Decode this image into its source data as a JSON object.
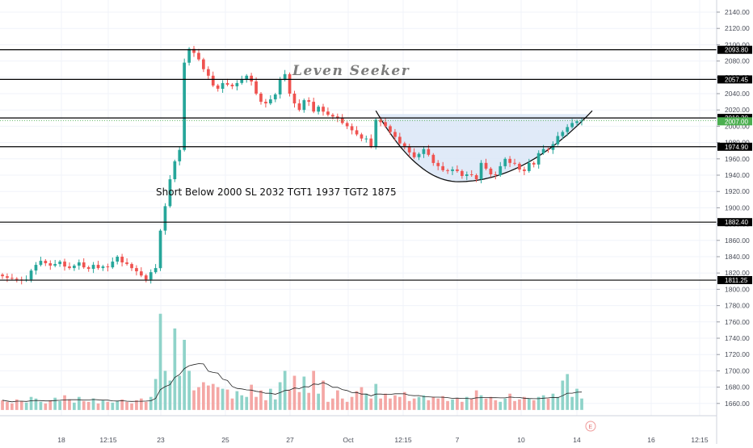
{
  "chart_data": {
    "type": "candlestick",
    "watermark": "Leven Seeker",
    "annotation": "Short Below 2000 SL 2032 TGT1 1937 TGT2 1875",
    "y_ticks": [
      "2140.00",
      "2120.00",
      "2100.00",
      "2080.00",
      "2060.00",
      "2040.00",
      "2020.00",
      "2000.00",
      "1980.00",
      "1960.00",
      "1940.00",
      "1920.00",
      "1900.00",
      "1880.00",
      "1860.00",
      "1840.00",
      "1820.00",
      "1800.00",
      "1780.00",
      "1760.00",
      "1740.00",
      "1720.00",
      "1700.00",
      "1680.00",
      "1660.00"
    ],
    "x_ticks": [
      "18",
      "12:15",
      "23",
      "25",
      "27",
      "Oct",
      "12:15",
      "7",
      "10",
      "14",
      "16",
      "12:15"
    ],
    "levels": [
      {
        "value": 2093.8,
        "label": "2093.80"
      },
      {
        "value": 2057.45,
        "label": "2057.45"
      },
      {
        "value": 2010.2,
        "label": "2010.20"
      },
      {
        "value": 1974.9,
        "label": "1974.90"
      },
      {
        "value": 1882.4,
        "label": "1882.40"
      },
      {
        "value": 1811.25,
        "label": "1811.25"
      }
    ],
    "current_price": {
      "value": 2007.0,
      "label": "2007.00"
    },
    "ylim": [
      1650,
      2150
    ],
    "colors": {
      "up": "#26a69a",
      "down": "#ef5350",
      "up_volume": "#8fd3c9",
      "down_volume": "#f4a7a5",
      "pattern_fill": "#dbe6f7",
      "level_line": "#000000",
      "price_tag": "#4caf50"
    },
    "candles": {
      "open": [
        1818,
        1816,
        1814,
        1813,
        1812,
        1811,
        1812,
        1823,
        1830,
        1835,
        1832,
        1829,
        1831,
        1834,
        1828,
        1826,
        1829,
        1833,
        1827,
        1825,
        1830,
        1826,
        1828,
        1827,
        1834,
        1840,
        1833,
        1831,
        1826,
        1822,
        1817,
        1812,
        1821,
        1826,
        1872,
        1902,
        1935,
        1957,
        1971,
        2078,
        2095,
        2090,
        2082,
        2070,
        2062,
        2050,
        2046,
        2053,
        2051,
        2049,
        2053,
        2057,
        2062,
        2055,
        2040,
        2030,
        2028,
        2033,
        2039,
        2057,
        2064,
        2040,
        2028,
        2020,
        2032,
        2030,
        2018,
        2024,
        2018,
        2014,
        2012,
        2010,
        2004,
        2000,
        1995,
        1990,
        1985,
        1985,
        1975,
        2008,
        2005,
        2000,
        1993,
        1987,
        1979,
        1975,
        1968,
        1962,
        1966,
        1972,
        1965,
        1955,
        1951,
        1946,
        1945,
        1947,
        1945,
        1939,
        1941,
        1940,
        1935,
        1955,
        1948,
        1941,
        1940,
        1951,
        1960,
        1955,
        1954,
        1947,
        1945,
        1955,
        1953,
        1967,
        1972,
        1971,
        1978,
        1988,
        1993,
        1999,
        2004,
        2006
      ],
      "close": [
        1816,
        1814,
        1813,
        1812,
        1811,
        1812,
        1823,
        1830,
        1835,
        1832,
        1829,
        1831,
        1834,
        1828,
        1826,
        1829,
        1833,
        1827,
        1825,
        1830,
        1826,
        1828,
        1827,
        1834,
        1840,
        1833,
        1831,
        1826,
        1822,
        1817,
        1812,
        1821,
        1826,
        1872,
        1902,
        1935,
        1957,
        1971,
        2078,
        2095,
        2090,
        2082,
        2070,
        2062,
        2050,
        2046,
        2053,
        2051,
        2049,
        2053,
        2057,
        2062,
        2055,
        2040,
        2030,
        2028,
        2033,
        2039,
        2057,
        2064,
        2040,
        2028,
        2020,
        2032,
        2030,
        2018,
        2024,
        2018,
        2014,
        2012,
        2010,
        2004,
        2000,
        1995,
        1990,
        1985,
        1985,
        1975,
        2008,
        2005,
        2000,
        1993,
        1987,
        1979,
        1975,
        1968,
        1962,
        1966,
        1972,
        1965,
        1955,
        1951,
        1946,
        1945,
        1947,
        1945,
        1939,
        1941,
        1940,
        1935,
        1955,
        1948,
        1941,
        1940,
        1951,
        1960,
        1955,
        1954,
        1947,
        1945,
        1955,
        1953,
        1967,
        1972,
        1971,
        1978,
        1988,
        1993,
        1999,
        2004,
        2006,
        2007
      ],
      "volume": [
        1664,
        1662,
        1660,
        1665,
        1663,
        1661,
        1668,
        1666,
        1662,
        1660,
        1664,
        1667,
        1663,
        1670,
        1665,
        1661,
        1668,
        1663,
        1662,
        1666,
        1660,
        1664,
        1662,
        1661,
        1663,
        1665,
        1662,
        1660,
        1664,
        1666,
        1662,
        1668,
        1690,
        1770,
        1700,
        1688,
        1752,
        1694,
        1738,
        1700,
        1676,
        1680,
        1686,
        1682,
        1684,
        1680,
        1678,
        1677,
        1666,
        1675,
        1670,
        1668,
        1683,
        1668,
        1676,
        1664,
        1678,
        1665,
        1686,
        1700,
        1676,
        1694,
        1674,
        1693,
        1673,
        1700,
        1672,
        1688,
        1662,
        1666,
        1676,
        1666,
        1662,
        1668,
        1675,
        1680,
        1672,
        1666,
        1684,
        1666,
        1672,
        1666,
        1670,
        1668,
        1674,
        1663,
        1666,
        1668,
        1670,
        1664,
        1668,
        1666,
        1669,
        1663,
        1665,
        1666,
        1662,
        1668,
        1666,
        1676,
        1670,
        1666,
        1668,
        1664,
        1662,
        1666,
        1672,
        1663,
        1665,
        1668,
        1666,
        1664,
        1668,
        1670,
        1666,
        1672,
        1668,
        1688,
        1696,
        1668,
        1678,
        1666
      ]
    }
  }
}
